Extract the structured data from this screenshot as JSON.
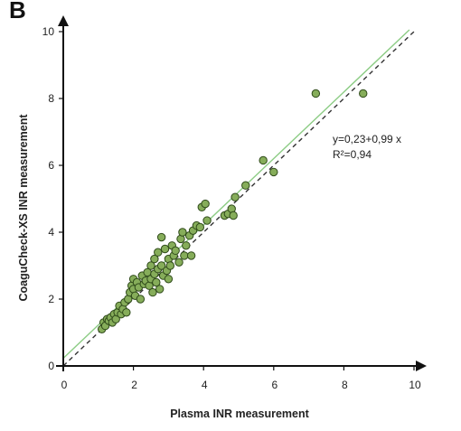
{
  "panel_label": "B",
  "colors": {
    "point_fill": "#86ad5a",
    "point_stroke": "#2f4a1a",
    "fit_line": "#8ccc84",
    "identity_line": "#333333",
    "axis": "#111111"
  },
  "chart_data": {
    "type": "scatter",
    "title": "",
    "xlabel": "Plasma INR measurement",
    "ylabel": "CoaguCheck-XS INR measurement",
    "xlim": [
      0,
      10
    ],
    "ylim": [
      0,
      10
    ],
    "x_ticks": [
      "0",
      "2",
      "4",
      "6",
      "8",
      "10"
    ],
    "y_ticks": [
      "0",
      "2",
      "4",
      "6",
      "8",
      "10"
    ],
    "grid": false,
    "regression": {
      "intercept": 0.23,
      "slope": 0.99,
      "style": "solid",
      "equation_text": "y=0,23+0,99 x",
      "r2_text": "R²=0,94"
    },
    "identity_line": {
      "style": "dashed"
    },
    "points": [
      [
        1.1,
        1.1
      ],
      [
        1.15,
        1.3
      ],
      [
        1.2,
        1.2
      ],
      [
        1.25,
        1.4
      ],
      [
        1.3,
        1.35
      ],
      [
        1.35,
        1.45
      ],
      [
        1.4,
        1.3
      ],
      [
        1.45,
        1.55
      ],
      [
        1.5,
        1.4
      ],
      [
        1.55,
        1.6
      ],
      [
        1.6,
        1.8
      ],
      [
        1.65,
        1.55
      ],
      [
        1.7,
        1.7
      ],
      [
        1.75,
        1.9
      ],
      [
        1.8,
        1.6
      ],
      [
        1.85,
        2.0
      ],
      [
        1.9,
        2.2
      ],
      [
        1.95,
        2.4
      ],
      [
        2.0,
        2.3
      ],
      [
        2.0,
        2.6
      ],
      [
        2.05,
        2.1
      ],
      [
        2.1,
        2.5
      ],
      [
        2.15,
        2.35
      ],
      [
        2.2,
        2.0
      ],
      [
        2.25,
        2.7
      ],
      [
        2.3,
        2.45
      ],
      [
        2.35,
        2.55
      ],
      [
        2.4,
        2.8
      ],
      [
        2.45,
        2.4
      ],
      [
        2.5,
        3.0
      ],
      [
        2.5,
        2.6
      ],
      [
        2.55,
        2.2
      ],
      [
        2.6,
        3.2
      ],
      [
        2.6,
        2.75
      ],
      [
        2.65,
        2.5
      ],
      [
        2.7,
        3.4
      ],
      [
        2.7,
        2.9
      ],
      [
        2.75,
        2.3
      ],
      [
        2.8,
        3.0
      ],
      [
        2.8,
        3.85
      ],
      [
        2.85,
        2.7
      ],
      [
        2.9,
        3.5
      ],
      [
        2.95,
        2.85
      ],
      [
        3.0,
        3.2
      ],
      [
        3.0,
        2.6
      ],
      [
        3.05,
        3.0
      ],
      [
        3.1,
        3.6
      ],
      [
        3.15,
        3.3
      ],
      [
        3.2,
        3.45
      ],
      [
        3.3,
        3.1
      ],
      [
        3.35,
        3.8
      ],
      [
        3.4,
        4.0
      ],
      [
        3.45,
        3.3
      ],
      [
        3.5,
        3.6
      ],
      [
        3.6,
        3.9
      ],
      [
        3.65,
        3.3
      ],
      [
        3.7,
        4.05
      ],
      [
        3.8,
        4.2
      ],
      [
        3.9,
        4.15
      ],
      [
        3.95,
        4.75
      ],
      [
        4.05,
        4.85
      ],
      [
        4.1,
        4.35
      ],
      [
        4.6,
        4.5
      ],
      [
        4.7,
        4.55
      ],
      [
        4.8,
        4.7
      ],
      [
        4.85,
        4.5
      ],
      [
        4.9,
        5.05
      ],
      [
        5.2,
        5.4
      ],
      [
        5.7,
        6.15
      ],
      [
        6.0,
        5.8
      ],
      [
        7.2,
        8.15
      ],
      [
        8.55,
        8.15
      ]
    ]
  }
}
